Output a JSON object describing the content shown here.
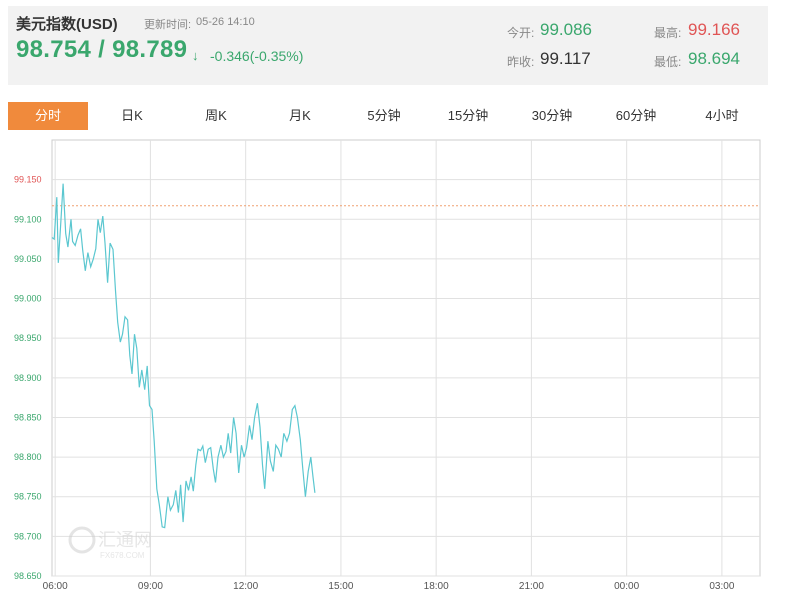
{
  "quote": {
    "title": "美元指数(USD)",
    "update_label": "更新时间:",
    "update_time": "05-26 14:10",
    "bid_ask": "98.754 / 98.789",
    "arrow": "↓",
    "change": "-0.346(-0.35%)",
    "open_label": "今开:",
    "open_value": "99.086",
    "prev_close_label": "昨收:",
    "prev_close_value": "99.117",
    "high_label": "最高:",
    "high_value": "99.166",
    "low_label": "最低:",
    "low_value": "98.694"
  },
  "colors": {
    "up": "#e05555",
    "down": "#3aa76d",
    "line": "#5bc7d0",
    "ref_line": "#f0a070",
    "tab_active": "#f08a3c"
  },
  "tabs": [
    "分时",
    "日K",
    "周K",
    "月K",
    "5分钟",
    "15分钟",
    "30分钟",
    "60分钟",
    "4小时"
  ],
  "active_tab": 0,
  "watermark": {
    "text": "汇通网",
    "sub": "FX678.COM"
  },
  "chart_data": {
    "type": "line",
    "title": "",
    "xlabel": "",
    "ylabel": "",
    "ylim": [
      98.65,
      99.2
    ],
    "reference_line": 99.117,
    "y_ticks": [
      "99.150",
      "99.100",
      "99.050",
      "99.000",
      "98.950",
      "98.900",
      "98.850",
      "98.800",
      "98.750",
      "98.700",
      "98.650"
    ],
    "x_ticks": [
      "06:00",
      "09:00",
      "12:00",
      "15:00",
      "18:00",
      "21:00",
      "00:00",
      "03:00"
    ],
    "x_range_hours": [
      5.9,
      28.2
    ],
    "grid": true,
    "series": [
      {
        "x": [
          5.9,
          5.97,
          6.05,
          6.1,
          6.18,
          6.25,
          6.33,
          6.4,
          6.5,
          6.55,
          6.63,
          6.72,
          6.8,
          6.87,
          6.95,
          7.03,
          7.12,
          7.2,
          7.28,
          7.35,
          7.42,
          7.5,
          7.57,
          7.65,
          7.73,
          7.82,
          7.9,
          7.97,
          8.05,
          8.12,
          8.2,
          8.28,
          8.35,
          8.42,
          8.5,
          8.57,
          8.65,
          8.73,
          8.82,
          8.9,
          8.97,
          9.05,
          9.12,
          9.2,
          9.28,
          9.37,
          9.45,
          9.55,
          9.63,
          9.72,
          9.8,
          9.88,
          9.95,
          10.03,
          10.12,
          10.2,
          10.28,
          10.35,
          10.43,
          10.5,
          10.58,
          10.65,
          10.73,
          10.82,
          10.9,
          10.98,
          11.05,
          11.13,
          11.22,
          11.3,
          11.38,
          11.45,
          11.53,
          11.62,
          11.7,
          11.78,
          11.87,
          11.95,
          12.03,
          12.12,
          12.2,
          12.28,
          12.37,
          12.45,
          12.53,
          12.6,
          12.7,
          12.78,
          12.87,
          12.95,
          13.03,
          13.12,
          13.2,
          13.3,
          13.38,
          13.47,
          13.55,
          13.63,
          13.72,
          13.8,
          13.88,
          13.97,
          14.05,
          14.12,
          14.18
        ],
        "y": [
          99.077,
          99.075,
          99.128,
          99.045,
          99.098,
          99.145,
          99.082,
          99.065,
          99.1,
          99.072,
          99.067,
          99.08,
          99.088,
          99.06,
          99.035,
          99.058,
          99.04,
          99.05,
          99.063,
          99.1,
          99.083,
          99.104,
          99.07,
          99.02,
          99.07,
          99.062,
          99.01,
          98.97,
          98.945,
          98.955,
          98.977,
          98.973,
          98.928,
          98.905,
          98.955,
          98.937,
          98.888,
          98.91,
          98.885,
          98.915,
          98.865,
          98.86,
          98.82,
          98.76,
          98.74,
          98.712,
          98.711,
          98.75,
          98.733,
          98.74,
          98.758,
          98.73,
          98.765,
          98.718,
          98.77,
          98.758,
          98.775,
          98.757,
          98.79,
          98.81,
          98.808,
          98.814,
          98.793,
          98.81,
          98.812,
          98.785,
          98.768,
          98.8,
          98.815,
          98.8,
          98.807,
          98.83,
          98.805,
          98.85,
          98.83,
          98.78,
          98.815,
          98.8,
          98.812,
          98.84,
          98.822,
          98.85,
          98.868,
          98.838,
          98.79,
          98.76,
          98.82,
          98.795,
          98.782,
          98.815,
          98.81,
          98.8,
          98.83,
          98.82,
          98.83,
          98.86,
          98.865,
          98.85,
          98.822,
          98.785,
          98.75,
          98.782,
          98.8,
          98.775,
          98.755
        ]
      }
    ]
  }
}
